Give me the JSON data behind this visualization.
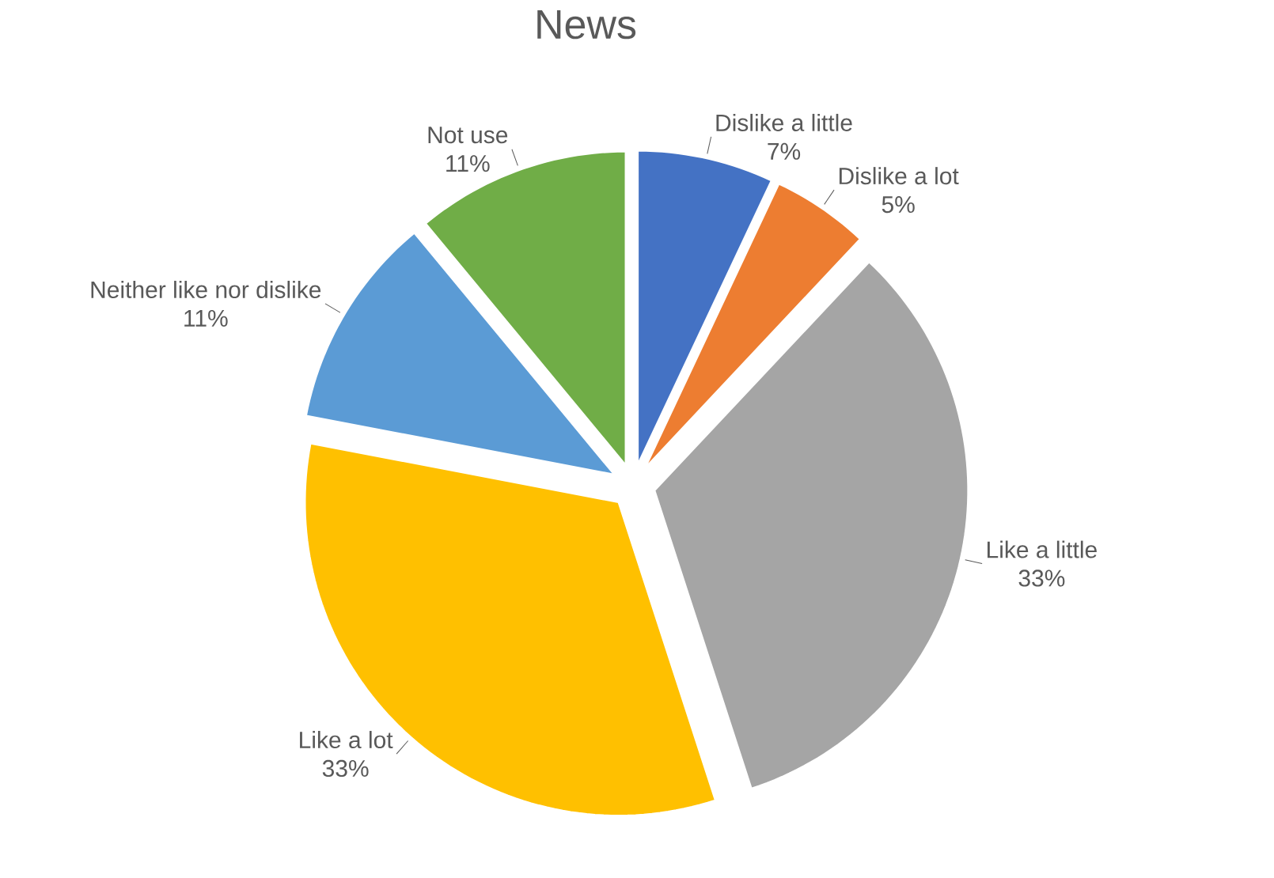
{
  "chart_data": {
    "type": "pie",
    "title": "News",
    "categories": [
      "Dislike a little",
      "Dislike a lot",
      "Like a little",
      "Like a lot",
      "Neither like nor dislike",
      "Not use"
    ],
    "values": [
      7,
      5,
      33,
      33,
      11,
      11
    ],
    "value_labels": [
      "7%",
      "5%",
      "33%",
      "33%",
      "11%",
      "11%"
    ],
    "colors": [
      "#4472c4",
      "#ed7d31",
      "#a5a5a5",
      "#ffc000",
      "#5b9bd5",
      "#70ad47"
    ],
    "legend": false
  }
}
